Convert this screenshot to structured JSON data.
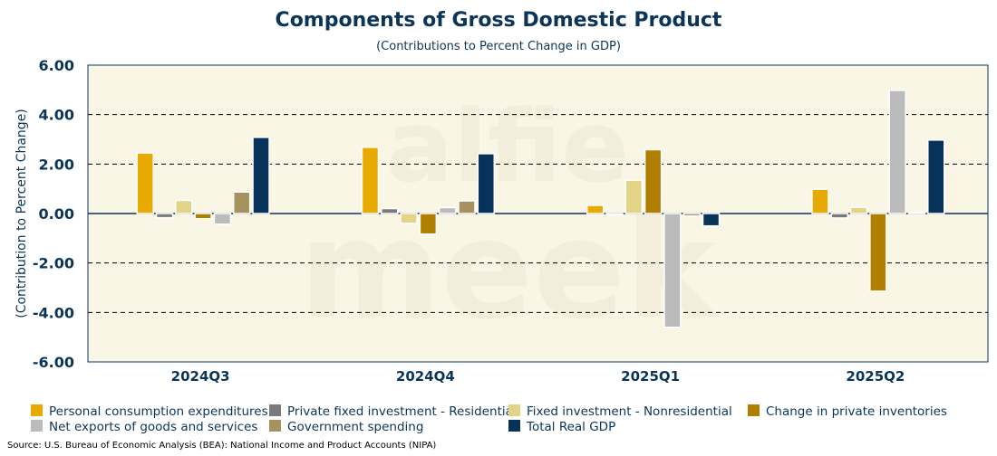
{
  "chart_data": {
    "type": "bar",
    "title": "Components of Gross Domestic Product",
    "subtitle": "(Contributions to Percent Change in GDP)",
    "xlabel": "",
    "ylabel": "(Contribution to Percent Change)",
    "ylim": [
      -6,
      6
    ],
    "yticks": [
      -6,
      -4,
      -2,
      0,
      2,
      4,
      6
    ],
    "ytick_labels": [
      "-6.00",
      "-4.00",
      "-2.00",
      "0.00",
      "2.00",
      "4.00",
      "6.00"
    ],
    "grid": true,
    "legend_position": "bottom",
    "categories": [
      "2024Q3",
      "2024Q4",
      "2025Q1",
      "2025Q2"
    ],
    "series": [
      {
        "name": "Personal consumption expenditures",
        "color": "#E8AA00",
        "values": [
          2.45,
          2.68,
          0.33,
          0.98
        ]
      },
      {
        "name": "Private fixed investment - Residential",
        "color": "#7A7A7A",
        "values": [
          -0.17,
          0.2,
          -0.02,
          -0.18
        ]
      },
      {
        "name": "Fixed investment - Nonresidential",
        "color": "#E2D386",
        "values": [
          0.53,
          -0.4,
          1.35,
          0.25
        ]
      },
      {
        "name": "Change in private inventories",
        "color": "#B07F00",
        "values": [
          -0.21,
          -0.83,
          2.58,
          -3.14
        ]
      },
      {
        "name": "Net exports of goods and services",
        "color": "#BBBBBB",
        "values": [
          -0.43,
          0.24,
          -4.6,
          4.98
        ]
      },
      {
        "name": "Government spending",
        "color": "#A5925E",
        "values": [
          0.87,
          0.51,
          -0.1,
          0.05
        ]
      },
      {
        "name": "Total Real GDP",
        "color": "#07325A",
        "values": [
          3.08,
          2.42,
          -0.5,
          2.97
        ]
      }
    ]
  },
  "source": "Source: U.S. Bureau of Economic Analysis (BEA): National Income and Product Accounts (NIPA)",
  "watermark": "alfie meek",
  "colors": {
    "title": "#0B3558",
    "plot_bg": "#F9F6E6",
    "axis": "#0B3558"
  }
}
